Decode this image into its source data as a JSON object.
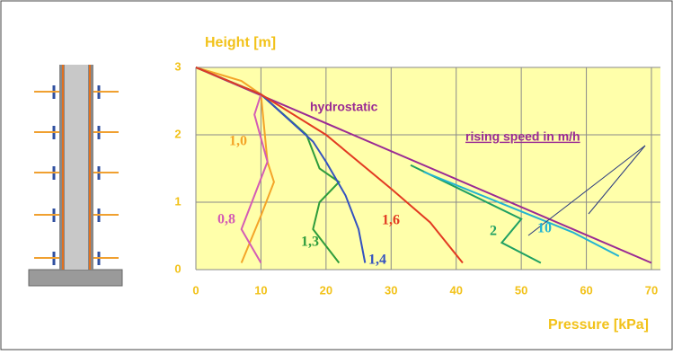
{
  "chart_data": {
    "type": "line",
    "title": "Height [m]",
    "x_label": "Pressure [kPa]",
    "annotations": [
      "hydrostatic",
      "rising speed in m/h"
    ],
    "xlim": [
      0,
      70
    ],
    "ylim": [
      0,
      3
    ],
    "xticks": [
      0,
      10,
      20,
      30,
      40,
      50,
      60,
      70
    ],
    "yticks": [
      0,
      1,
      2,
      3
    ],
    "grid": true,
    "series": [
      {
        "name": "hydrostatic",
        "color": "#9a2a94",
        "x": [
          0,
          70
        ],
        "values": [
          3,
          0.1
        ]
      },
      {
        "name": "1,0",
        "color": "#f4a428",
        "x": [
          0,
          7,
          10,
          11,
          12,
          10,
          7
        ],
        "values": [
          3,
          2.8,
          2.6,
          1.6,
          1.3,
          0.8,
          0.1
        ]
      },
      {
        "name": "0,8",
        "color": "#d45cb4",
        "x": [
          0,
          10,
          9,
          11,
          9,
          7,
          10
        ],
        "values": [
          3,
          2.6,
          2.3,
          1.6,
          1.1,
          0.6,
          0.1
        ]
      },
      {
        "name": "1,3",
        "color": "#2e9c3c",
        "x": [
          0,
          10,
          17,
          19,
          22,
          19,
          18,
          22
        ],
        "values": [
          3,
          2.6,
          2.0,
          1.5,
          1.3,
          1.0,
          0.6,
          0.1
        ]
      },
      {
        "name": "1,4",
        "color": "#3452c0",
        "x": [
          0,
          10,
          18,
          20,
          23,
          25,
          26
        ],
        "values": [
          3,
          2.6,
          1.9,
          1.6,
          1.1,
          0.6,
          0.1
        ]
      },
      {
        "name": "1,6",
        "color": "#e23a22",
        "x": [
          0,
          10,
          20,
          30,
          36,
          41
        ],
        "values": [
          3,
          2.6,
          2.0,
          1.2,
          0.7,
          0.1
        ]
      },
      {
        "name": "2",
        "color": "#1fa063",
        "x": [
          33,
          50,
          47,
          53
        ],
        "values": [
          1.55,
          0.75,
          0.4,
          0.1
        ]
      },
      {
        "name": "10",
        "color": "#22b4d2",
        "x": [
          35,
          58,
          65
        ],
        "values": [
          1.45,
          0.55,
          0.2
        ]
      }
    ]
  }
}
